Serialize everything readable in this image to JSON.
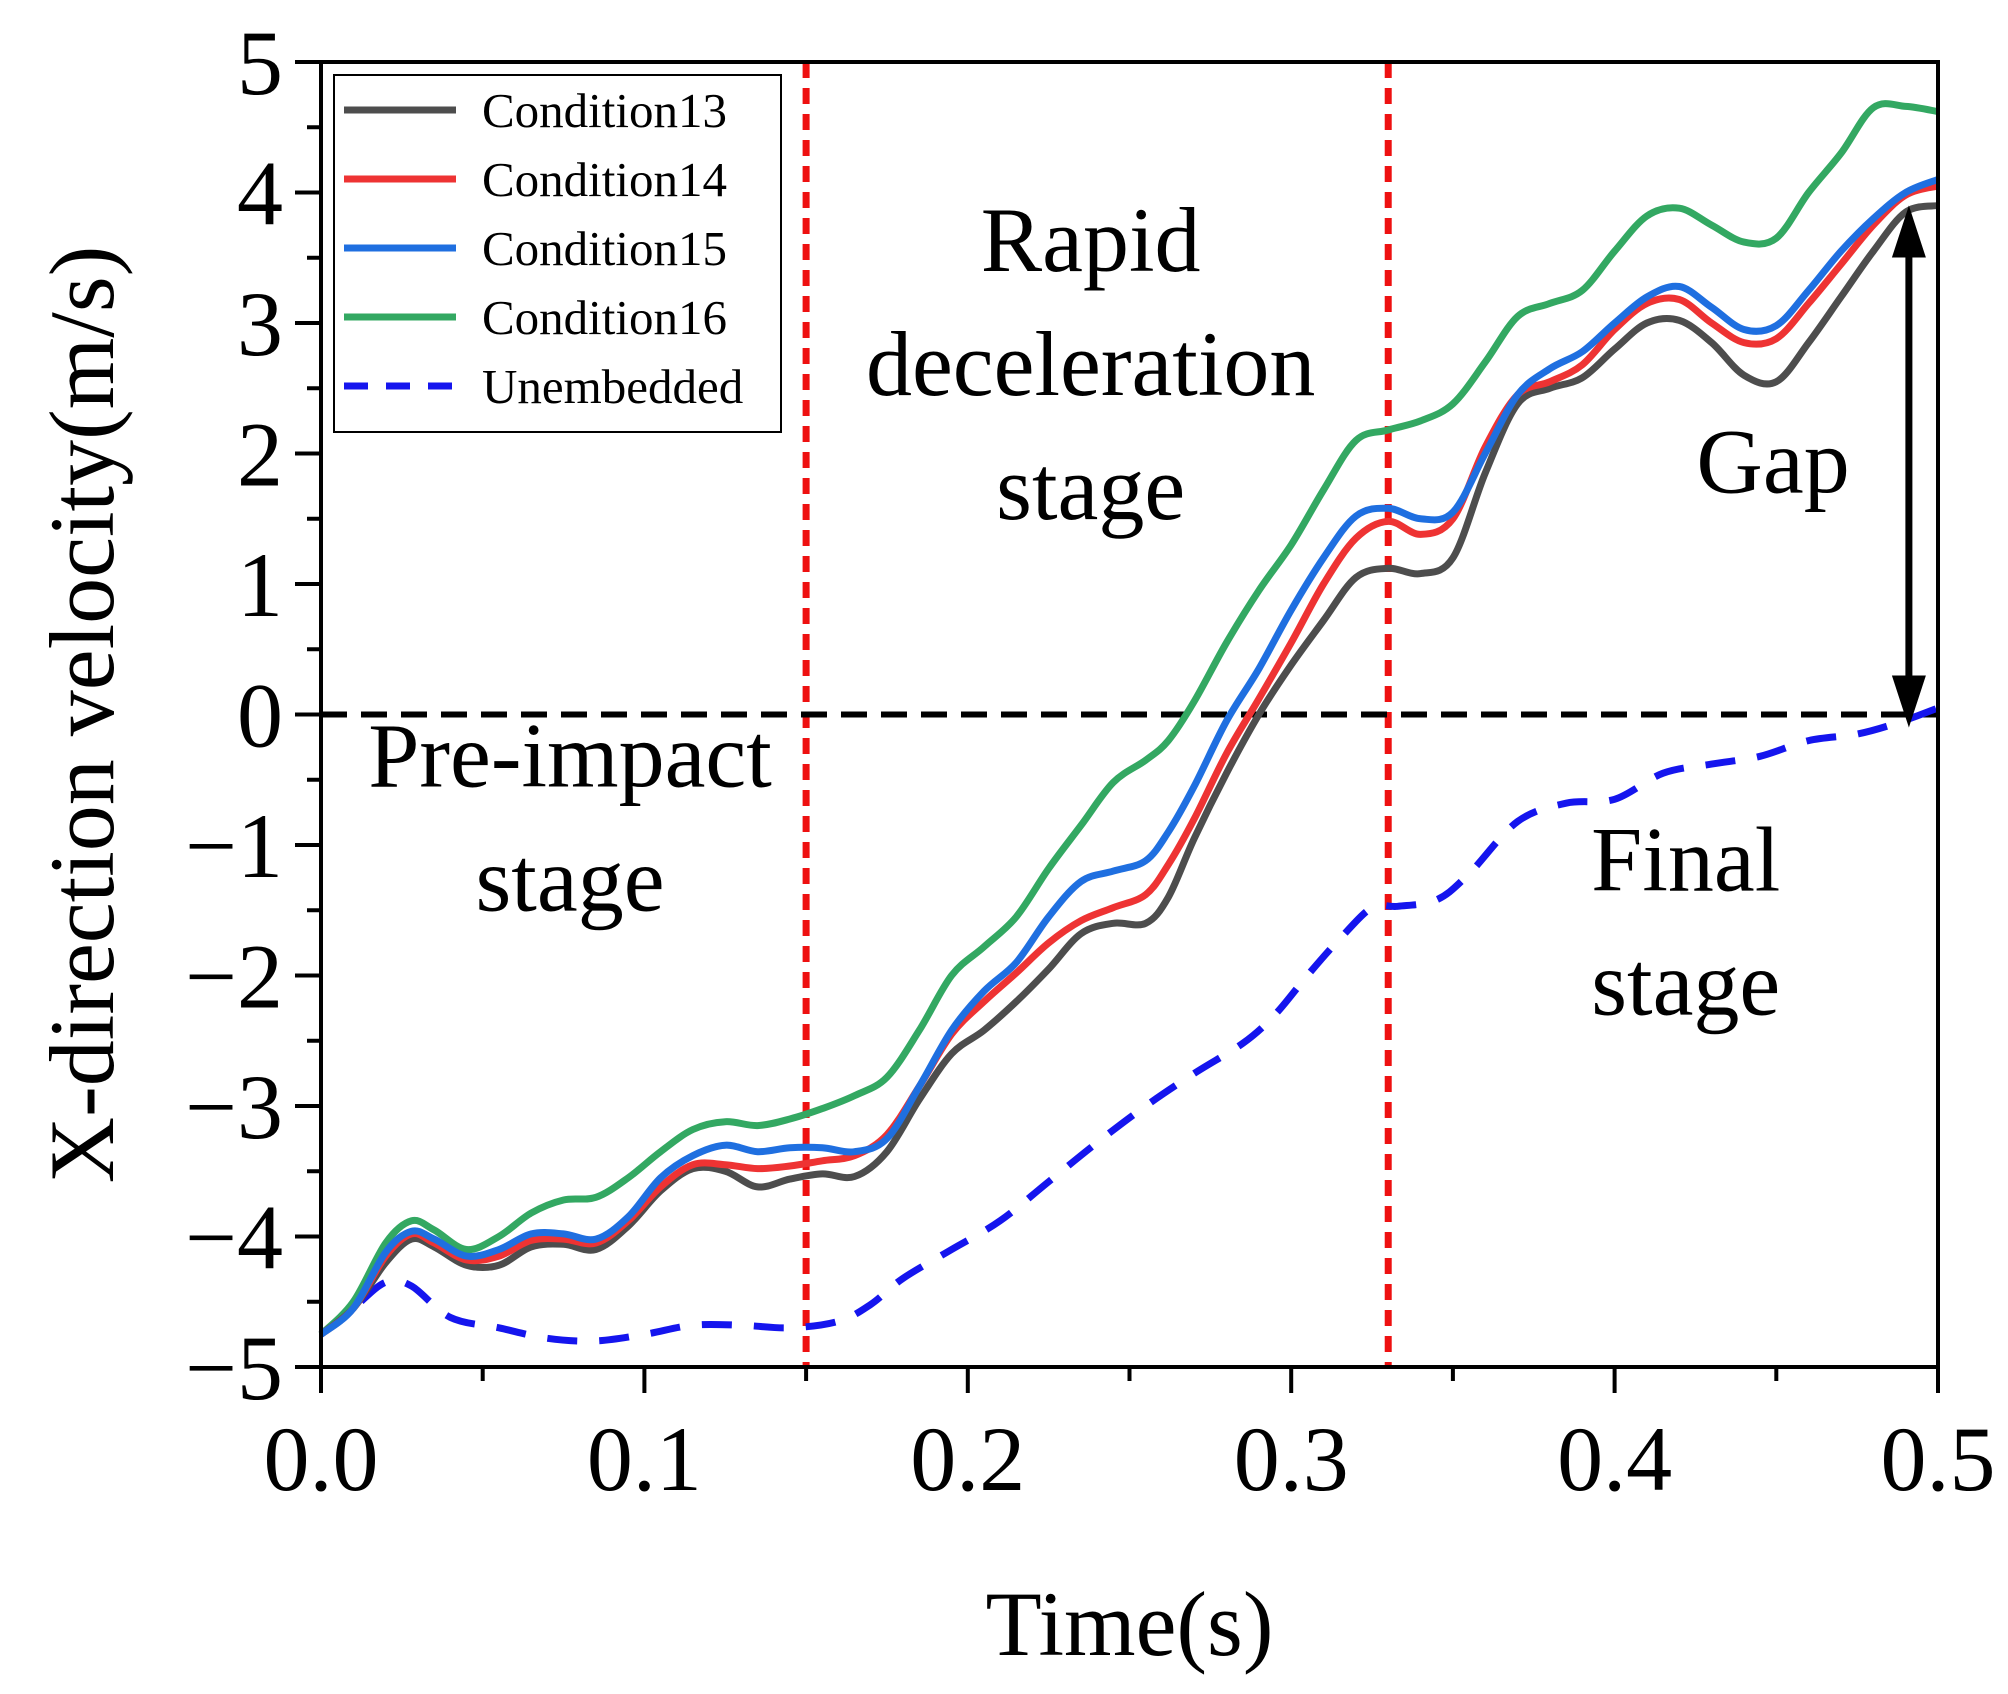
{
  "chart_data": {
    "type": "line",
    "xlabel": "Time(s)",
    "ylabel": "X-direction velocity(m/s)",
    "xlim": [
      0.0,
      0.5
    ],
    "ylim": [
      -5,
      5
    ],
    "x_ticks": [
      "0.0",
      "0.1",
      "0.2",
      "0.3",
      "0.4",
      "0.5"
    ],
    "y_ticks": [
      "−5",
      "−4",
      "−3",
      "−2",
      "−1",
      "0",
      "1",
      "2",
      "3",
      "4",
      "5"
    ],
    "grid": false,
    "legend_position": "top-left",
    "reference_lines": [
      {
        "orientation": "vertical",
        "x": 0.15,
        "color": "#ee1111",
        "style": "dotted"
      },
      {
        "orientation": "vertical",
        "x": 0.33,
        "color": "#ee1111",
        "style": "dotted"
      },
      {
        "orientation": "horizontal",
        "y": 0,
        "color": "#000000",
        "style": "dashed"
      }
    ],
    "annotations": [
      {
        "lines": [
          "Pre-impact",
          "stage"
        ],
        "x": 0.077,
        "y": [
          -0.55,
          -1.5
        ]
      },
      {
        "lines": [
          "Rapid",
          "deceleration",
          "stage"
        ],
        "x": 0.238,
        "y": [
          3.4,
          2.45,
          1.5
        ]
      },
      {
        "lines": [
          "Gap"
        ],
        "x": 0.449,
        "y": [
          1.7
        ]
      },
      {
        "lines": [
          "Final",
          "stage"
        ],
        "x": 0.422,
        "y": [
          -1.35,
          -2.3
        ]
      }
    ],
    "gap_arrow": {
      "x": 0.491,
      "y_top": 3.9,
      "y_bottom": -0.1
    },
    "series": [
      {
        "name": "Condition13",
        "color": "#4d4d4d",
        "style": "solid",
        "x": [
          0,
          0.01,
          0.02,
          0.028,
          0.035,
          0.045,
          0.055,
          0.065,
          0.075,
          0.085,
          0.095,
          0.105,
          0.115,
          0.125,
          0.135,
          0.145,
          0.155,
          0.165,
          0.175,
          0.185,
          0.195,
          0.205,
          0.215,
          0.225,
          0.235,
          0.245,
          0.255,
          0.262,
          0.27,
          0.28,
          0.29,
          0.3,
          0.31,
          0.32,
          0.33,
          0.34,
          0.35,
          0.36,
          0.37,
          0.38,
          0.39,
          0.4,
          0.41,
          0.42,
          0.43,
          0.44,
          0.45,
          0.46,
          0.47,
          0.48,
          0.49,
          0.5
        ],
        "y": [
          -4.75,
          -4.55,
          -4.2,
          -4.02,
          -4.08,
          -4.22,
          -4.22,
          -4.08,
          -4.06,
          -4.1,
          -3.92,
          -3.65,
          -3.48,
          -3.5,
          -3.62,
          -3.56,
          -3.52,
          -3.54,
          -3.35,
          -2.95,
          -2.6,
          -2.42,
          -2.2,
          -1.95,
          -1.68,
          -1.6,
          -1.6,
          -1.4,
          -0.95,
          -0.45,
          0.0,
          0.38,
          0.72,
          1.05,
          1.12,
          1.08,
          1.2,
          1.85,
          2.38,
          2.5,
          2.58,
          2.8,
          3.0,
          3.02,
          2.85,
          2.6,
          2.55,
          2.85,
          3.2,
          3.55,
          3.85,
          3.9
        ]
      },
      {
        "name": "Condition14",
        "color": "#ee3333",
        "style": "solid",
        "x": [
          0,
          0.01,
          0.02,
          0.028,
          0.035,
          0.045,
          0.055,
          0.065,
          0.075,
          0.085,
          0.095,
          0.105,
          0.115,
          0.125,
          0.135,
          0.145,
          0.155,
          0.165,
          0.175,
          0.185,
          0.195,
          0.205,
          0.215,
          0.225,
          0.235,
          0.245,
          0.255,
          0.262,
          0.27,
          0.28,
          0.29,
          0.3,
          0.31,
          0.32,
          0.33,
          0.34,
          0.35,
          0.36,
          0.37,
          0.38,
          0.39,
          0.4,
          0.41,
          0.42,
          0.43,
          0.44,
          0.45,
          0.46,
          0.47,
          0.48,
          0.49,
          0.5
        ],
        "y": [
          -4.75,
          -4.55,
          -4.15,
          -3.98,
          -4.05,
          -4.18,
          -4.15,
          -4.03,
          -4.02,
          -4.05,
          -3.88,
          -3.62,
          -3.45,
          -3.45,
          -3.48,
          -3.46,
          -3.42,
          -3.38,
          -3.22,
          -2.85,
          -2.45,
          -2.2,
          -1.98,
          -1.75,
          -1.58,
          -1.48,
          -1.38,
          -1.15,
          -0.8,
          -0.3,
          0.12,
          0.55,
          1.0,
          1.35,
          1.48,
          1.38,
          1.5,
          2.05,
          2.45,
          2.55,
          2.68,
          2.95,
          3.15,
          3.18,
          3.0,
          2.85,
          2.88,
          3.15,
          3.45,
          3.75,
          3.98,
          4.05
        ]
      },
      {
        "name": "Condition15",
        "color": "#1f6fe0",
        "style": "solid",
        "x": [
          0,
          0.01,
          0.02,
          0.028,
          0.035,
          0.045,
          0.055,
          0.065,
          0.075,
          0.085,
          0.095,
          0.105,
          0.115,
          0.125,
          0.135,
          0.145,
          0.155,
          0.165,
          0.175,
          0.185,
          0.195,
          0.205,
          0.215,
          0.225,
          0.235,
          0.245,
          0.255,
          0.262,
          0.27,
          0.28,
          0.29,
          0.3,
          0.31,
          0.32,
          0.33,
          0.34,
          0.35,
          0.36,
          0.37,
          0.38,
          0.39,
          0.4,
          0.41,
          0.42,
          0.43,
          0.44,
          0.45,
          0.46,
          0.47,
          0.48,
          0.49,
          0.5
        ],
        "y": [
          -4.75,
          -4.55,
          -4.12,
          -3.96,
          -4.02,
          -4.15,
          -4.1,
          -3.98,
          -3.98,
          -4.02,
          -3.85,
          -3.55,
          -3.38,
          -3.3,
          -3.35,
          -3.32,
          -3.32,
          -3.35,
          -3.25,
          -2.85,
          -2.42,
          -2.12,
          -1.9,
          -1.55,
          -1.28,
          -1.2,
          -1.12,
          -0.9,
          -0.55,
          -0.05,
          0.35,
          0.8,
          1.2,
          1.52,
          1.58,
          1.5,
          1.55,
          2.0,
          2.45,
          2.65,
          2.78,
          3.0,
          3.2,
          3.28,
          3.12,
          2.95,
          2.98,
          3.25,
          3.55,
          3.8,
          4.0,
          4.1
        ]
      },
      {
        "name": "Condition16",
        "color": "#33a862",
        "style": "solid",
        "x": [
          0,
          0.01,
          0.02,
          0.028,
          0.035,
          0.045,
          0.055,
          0.065,
          0.075,
          0.085,
          0.095,
          0.105,
          0.115,
          0.125,
          0.135,
          0.145,
          0.155,
          0.165,
          0.175,
          0.185,
          0.195,
          0.205,
          0.215,
          0.225,
          0.235,
          0.245,
          0.255,
          0.262,
          0.27,
          0.28,
          0.29,
          0.3,
          0.31,
          0.32,
          0.33,
          0.34,
          0.35,
          0.36,
          0.37,
          0.38,
          0.39,
          0.4,
          0.41,
          0.42,
          0.43,
          0.44,
          0.45,
          0.46,
          0.47,
          0.48,
          0.49,
          0.5
        ],
        "y": [
          -4.75,
          -4.5,
          -4.05,
          -3.88,
          -3.95,
          -4.1,
          -4.0,
          -3.82,
          -3.72,
          -3.7,
          -3.55,
          -3.35,
          -3.18,
          -3.12,
          -3.15,
          -3.1,
          -3.02,
          -2.92,
          -2.78,
          -2.42,
          -2.0,
          -1.78,
          -1.55,
          -1.18,
          -0.85,
          -0.52,
          -0.35,
          -0.2,
          0.1,
          0.55,
          0.95,
          1.3,
          1.72,
          2.1,
          2.18,
          2.25,
          2.38,
          2.7,
          3.05,
          3.15,
          3.25,
          3.55,
          3.82,
          3.88,
          3.75,
          3.62,
          3.65,
          4.0,
          4.3,
          4.65,
          4.66,
          4.62
        ]
      },
      {
        "name": "Unembedded",
        "color": "#1515ee",
        "style": "dashed",
        "x": [
          0,
          0.01,
          0.02,
          0.028,
          0.04,
          0.055,
          0.07,
          0.085,
          0.1,
          0.115,
          0.13,
          0.145,
          0.16,
          0.17,
          0.18,
          0.195,
          0.21,
          0.225,
          0.24,
          0.255,
          0.27,
          0.285,
          0.295,
          0.305,
          0.315,
          0.325,
          0.333,
          0.345,
          0.355,
          0.37,
          0.385,
          0.4,
          0.415,
          0.43,
          0.445,
          0.46,
          0.475,
          0.488,
          0.5
        ],
        "y": [
          -4.75,
          -4.55,
          -4.35,
          -4.38,
          -4.62,
          -4.7,
          -4.78,
          -4.8,
          -4.75,
          -4.68,
          -4.68,
          -4.7,
          -4.65,
          -4.52,
          -4.32,
          -4.1,
          -3.88,
          -3.58,
          -3.28,
          -3.0,
          -2.75,
          -2.52,
          -2.3,
          -2.0,
          -1.72,
          -1.48,
          -1.47,
          -1.42,
          -1.22,
          -0.82,
          -0.68,
          -0.65,
          -0.45,
          -0.38,
          -0.32,
          -0.2,
          -0.15,
          -0.06,
          0.05
        ]
      }
    ]
  }
}
